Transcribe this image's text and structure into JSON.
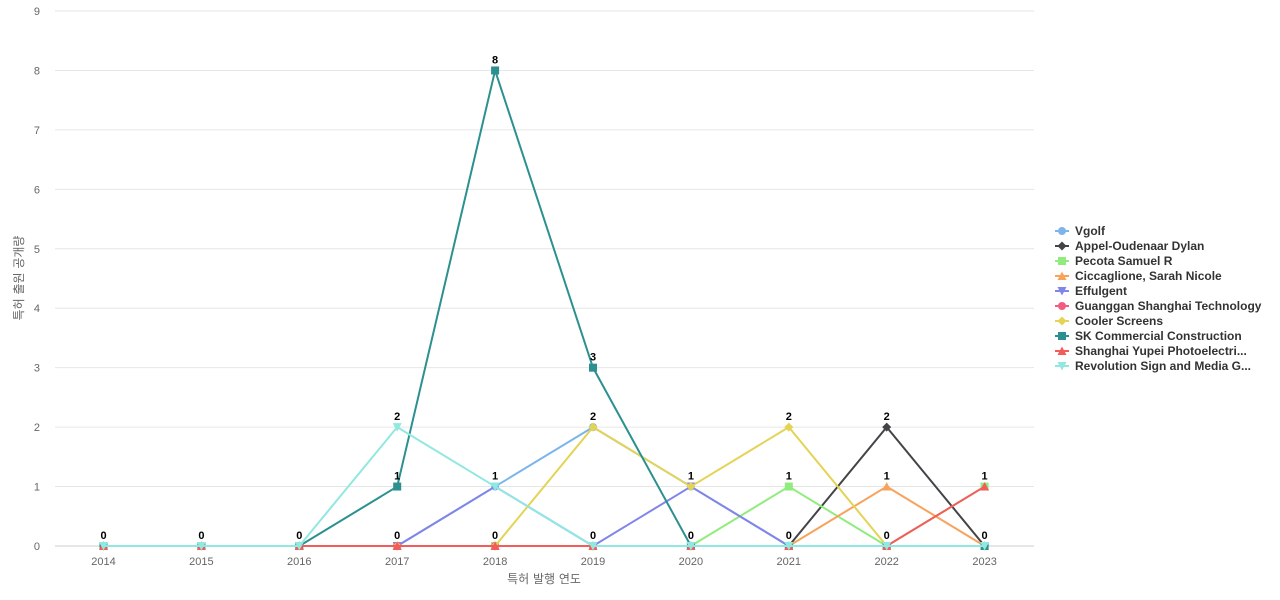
{
  "chart_data": {
    "type": "line",
    "title": "",
    "xlabel": "특허 발행 연도",
    "ylabel": "특허 출원 공개량",
    "x": [
      "2014",
      "2015",
      "2016",
      "2017",
      "2018",
      "2019",
      "2020",
      "2021",
      "2022",
      "2023"
    ],
    "ylim": [
      0,
      9
    ],
    "yticks": [
      0,
      1,
      2,
      3,
      4,
      5,
      6,
      7,
      8,
      9
    ],
    "grid": "horizontal",
    "legend_position": "right",
    "series": [
      {
        "name": "Vgolf",
        "color": "#7cb5ec",
        "marker": "circle",
        "values": [
          0,
          0,
          0,
          0,
          1,
          2,
          1,
          0,
          0,
          0
        ]
      },
      {
        "name": "Appel-Oudenaar Dylan",
        "color": "#434348",
        "marker": "diamond",
        "values": [
          0,
          0,
          0,
          0,
          0,
          0,
          0,
          0,
          2,
          0
        ]
      },
      {
        "name": "Pecota Samuel R",
        "color": "#90ed7d",
        "marker": "square",
        "values": [
          0,
          0,
          0,
          0,
          0,
          0,
          0,
          1,
          0,
          1
        ]
      },
      {
        "name": "Ciccaglione, Sarah Nicole",
        "color": "#f7a35c",
        "marker": "triangle",
        "values": [
          0,
          0,
          0,
          0,
          0,
          0,
          0,
          0,
          1,
          0
        ]
      },
      {
        "name": "Effulgent",
        "color": "#8085e9",
        "marker": "triangle-down",
        "values": [
          0,
          0,
          0,
          0,
          1,
          0,
          1,
          0,
          0,
          0
        ]
      },
      {
        "name": "Guanggan Shanghai Technology",
        "color": "#f15c80",
        "marker": "circle",
        "values": [
          0,
          0,
          0,
          0,
          0,
          0,
          0,
          0,
          0,
          0
        ]
      },
      {
        "name": "Cooler Screens",
        "color": "#e4d354",
        "marker": "diamond",
        "values": [
          0,
          0,
          0,
          0,
          0,
          2,
          1,
          2,
          0,
          0
        ]
      },
      {
        "name": "SK Commercial Construction",
        "color": "#2b908f",
        "marker": "square",
        "values": [
          0,
          0,
          0,
          1,
          8,
          3,
          0,
          0,
          0,
          0
        ]
      },
      {
        "name": "Shanghai Yupei Photoelectri...",
        "color": "#f45b5b",
        "marker": "triangle",
        "values": [
          0,
          0,
          0,
          0,
          0,
          0,
          0,
          0,
          0,
          1
        ]
      },
      {
        "name": "Revolution Sign and Media G...",
        "color": "#91e8e1",
        "marker": "triangle-down",
        "values": [
          0,
          0,
          0,
          2,
          1,
          0,
          0,
          0,
          0,
          0
        ]
      }
    ],
    "data_labels": [
      {
        "x": "2014",
        "value": 0
      },
      {
        "x": "2015",
        "value": 0
      },
      {
        "x": "2016",
        "value": 0
      },
      {
        "x": "2017",
        "value": 2
      },
      {
        "x": "2017",
        "value": 1
      },
      {
        "x": "2017",
        "value": 0
      },
      {
        "x": "2018",
        "value": 8
      },
      {
        "x": "2018",
        "value": 1
      },
      {
        "x": "2018",
        "value": 0
      },
      {
        "x": "2019",
        "value": 3
      },
      {
        "x": "2019",
        "value": 2
      },
      {
        "x": "2019",
        "value": 0
      },
      {
        "x": "2020",
        "value": 1
      },
      {
        "x": "2020",
        "value": 0
      },
      {
        "x": "2021",
        "value": 2
      },
      {
        "x": "2021",
        "value": 1
      },
      {
        "x": "2021",
        "value": 0
      },
      {
        "x": "2022",
        "value": 2
      },
      {
        "x": "2022",
        "value": 1
      },
      {
        "x": "2022",
        "value": 0
      },
      {
        "x": "2023",
        "value": 1
      },
      {
        "x": "2023",
        "value": 0
      }
    ]
  }
}
